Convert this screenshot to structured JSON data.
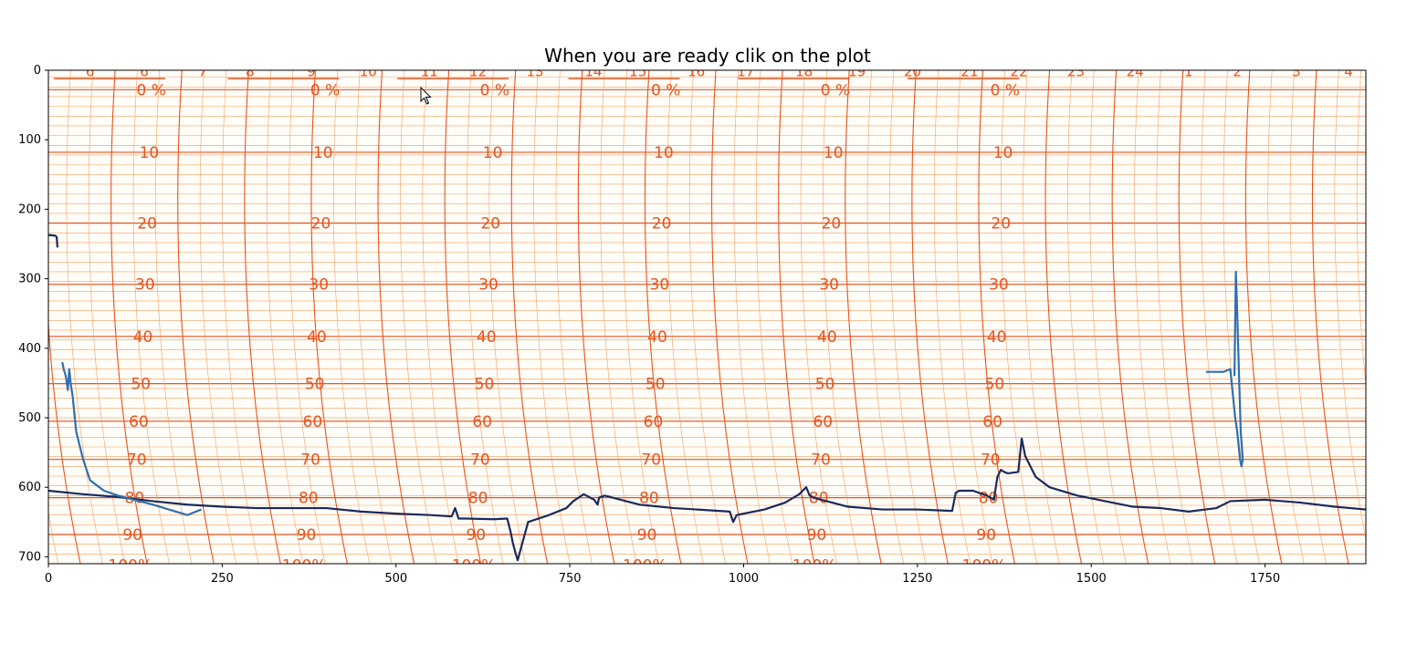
{
  "colors": {
    "paper_background": "#fffdf8",
    "grid_major": "#e8531c",
    "grid_minor": "#f4a060",
    "trace_dark": "#1a2a5c",
    "trace_light": "#2f6fb0",
    "axes": "#000000"
  },
  "icons": {
    "cursor": "mouse-pointer-icon"
  },
  "chart_data": {
    "type": "line",
    "title": "When you are ready clik on the plot",
    "xlabel": "",
    "ylabel": "",
    "xlim": [
      0,
      1895
    ],
    "ylim": [
      710,
      0
    ],
    "y_inverted": true,
    "grid": false,
    "x_ticks": [
      0,
      250,
      500,
      750,
      1000,
      1250,
      1500,
      1750
    ],
    "y_ticks": [
      0,
      100,
      200,
      300,
      400,
      500,
      600,
      700
    ],
    "background_image": {
      "kind": "humidity-recorder-chart-paper",
      "row_labels": [
        "0 %",
        "10",
        "20",
        "30",
        "40",
        "50",
        "60",
        "70",
        "80",
        "90",
        "100%"
      ],
      "row_label_y": [
        28,
        118,
        220,
        308,
        383,
        451,
        505,
        560,
        615,
        668,
        712
      ],
      "block_label_x": [
        148,
        398,
        642,
        888,
        1132,
        1376
      ],
      "hour_labels": [
        "6",
        "6",
        "7",
        "8",
        "9",
        "10",
        "11",
        "12",
        "13",
        "14",
        "15",
        "16",
        "17",
        "18",
        "19",
        "20",
        "21",
        "22",
        "23",
        "24",
        "1",
        "2",
        "3",
        "4"
      ],
      "hour_label_x": [
        60,
        138,
        222,
        290,
        378,
        460,
        548,
        618,
        700,
        784,
        848,
        932,
        1003,
        1087,
        1163,
        1243,
        1325,
        1396,
        1478,
        1563,
        1640,
        1710,
        1795,
        1870
      ]
    },
    "series": [
      {
        "color": "#1a2a5c",
        "x": [
          0,
          50,
          100,
          150,
          200,
          250,
          300,
          350,
          400,
          450,
          500,
          550,
          580,
          585,
          590,
          600,
          640,
          660,
          665,
          668,
          672,
          675,
          690,
          720,
          745,
          755,
          770,
          785,
          790,
          792,
          800,
          850,
          900,
          980,
          985,
          990,
          1000,
          1030,
          1060,
          1080,
          1090,
          1095,
          1100,
          1150,
          1200,
          1250,
          1300,
          1305,
          1310,
          1330,
          1350,
          1360,
          1365,
          1370,
          1375,
          1380,
          1395,
          1400,
          1405,
          1420,
          1440,
          1480,
          1520,
          1560,
          1600,
          1640,
          1680,
          1700,
          1750,
          1800,
          1850,
          1895
        ],
        "y": [
          605,
          610,
          614,
          620,
          625,
          628,
          630,
          630,
          630,
          635,
          638,
          640,
          642,
          630,
          645,
          645,
          646,
          645,
          665,
          680,
          695,
          705,
          650,
          640,
          630,
          620,
          610,
          618,
          625,
          615,
          612,
          625,
          630,
          635,
          650,
          640,
          638,
          632,
          622,
          610,
          600,
          612,
          615,
          628,
          632,
          632,
          634,
          608,
          605,
          605,
          612,
          618,
          585,
          575,
          578,
          580,
          578,
          530,
          555,
          585,
          600,
          612,
          620,
          628,
          630,
          635,
          630,
          620,
          618,
          622,
          628,
          632
        ]
      },
      {
        "color": "#2f6fb0",
        "x": [
          20,
          22,
          25,
          28,
          30,
          32,
          35,
          40,
          50,
          60,
          80,
          100,
          150,
          200,
          220
        ],
        "y": [
          420,
          430,
          440,
          460,
          430,
          450,
          470,
          520,
          560,
          590,
          605,
          612,
          625,
          640,
          632
        ]
      },
      {
        "color": "#2f6fb0",
        "x": [
          1665,
          1690,
          1700,
          1703,
          1705,
          1707,
          1710,
          1712,
          1714,
          1716,
          1718,
          1715,
          1712,
          1710,
          1708,
          1706
        ],
        "y": [
          434,
          434,
          430,
          460,
          480,
          500,
          520,
          540,
          560,
          570,
          560,
          520,
          420,
          350,
          290,
          440
        ]
      },
      {
        "color": "#1a2a5c",
        "x": [
          0,
          10,
          12,
          13
        ],
        "y": [
          237,
          238,
          240,
          255
        ]
      }
    ]
  }
}
